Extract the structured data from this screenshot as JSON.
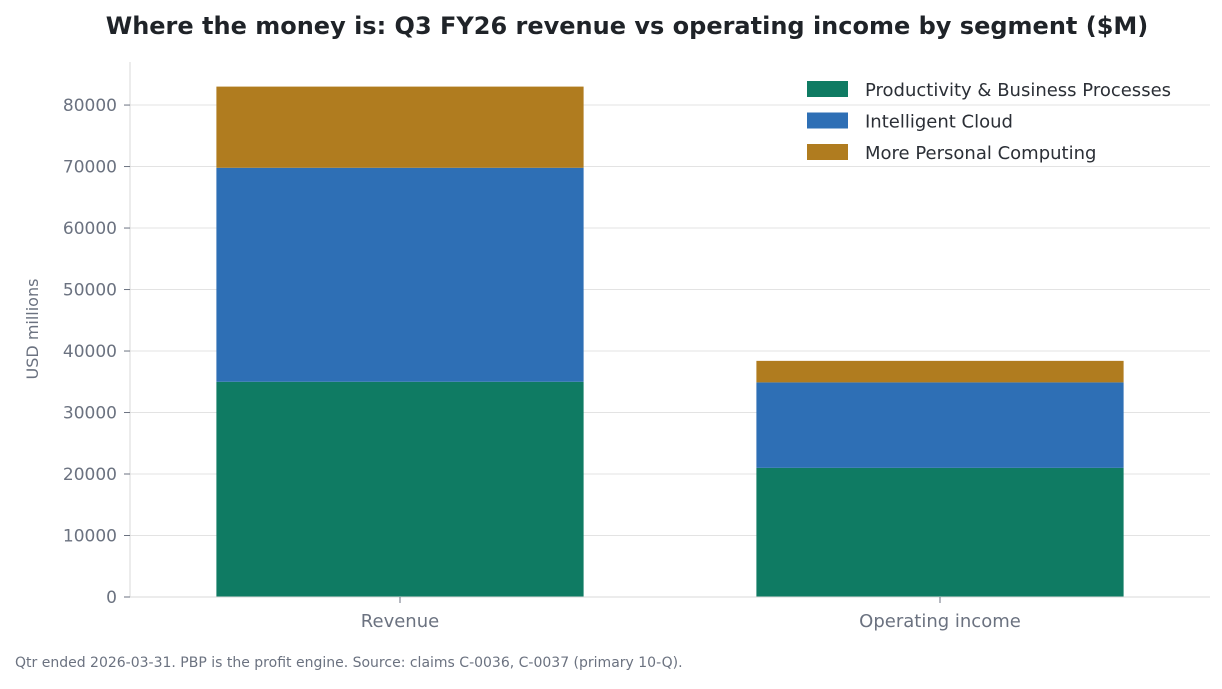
{
  "chart_data": {
    "type": "bar",
    "stacked": true,
    "title": "Where the money is: Q3 FY26 revenue vs operating income by segment ($M)",
    "categories": [
      "Revenue",
      "Operating income"
    ],
    "series": [
      {
        "name": "Productivity & Business Processes",
        "color": "#0f7b63",
        "values": [
          35000,
          21000
        ]
      },
      {
        "name": "Intelligent Cloud",
        "color": "#2e6fb5",
        "values": [
          34800,
          13900
        ]
      },
      {
        "name": "More Personal Computing",
        "color": "#b07c1f",
        "values": [
          13200,
          3500
        ]
      }
    ],
    "ylabel": "USD millions",
    "xlabel": "",
    "ylim": [
      0,
      87000
    ],
    "yticks": [
      0,
      10000,
      20000,
      30000,
      40000,
      50000,
      60000,
      70000,
      80000
    ],
    "grid": true,
    "legend_position": "top-right"
  },
  "footnote": "Qtr ended 2026-03-31. PBP is the profit engine. Source: claims C-0036, C-0037 (primary 10-Q)."
}
